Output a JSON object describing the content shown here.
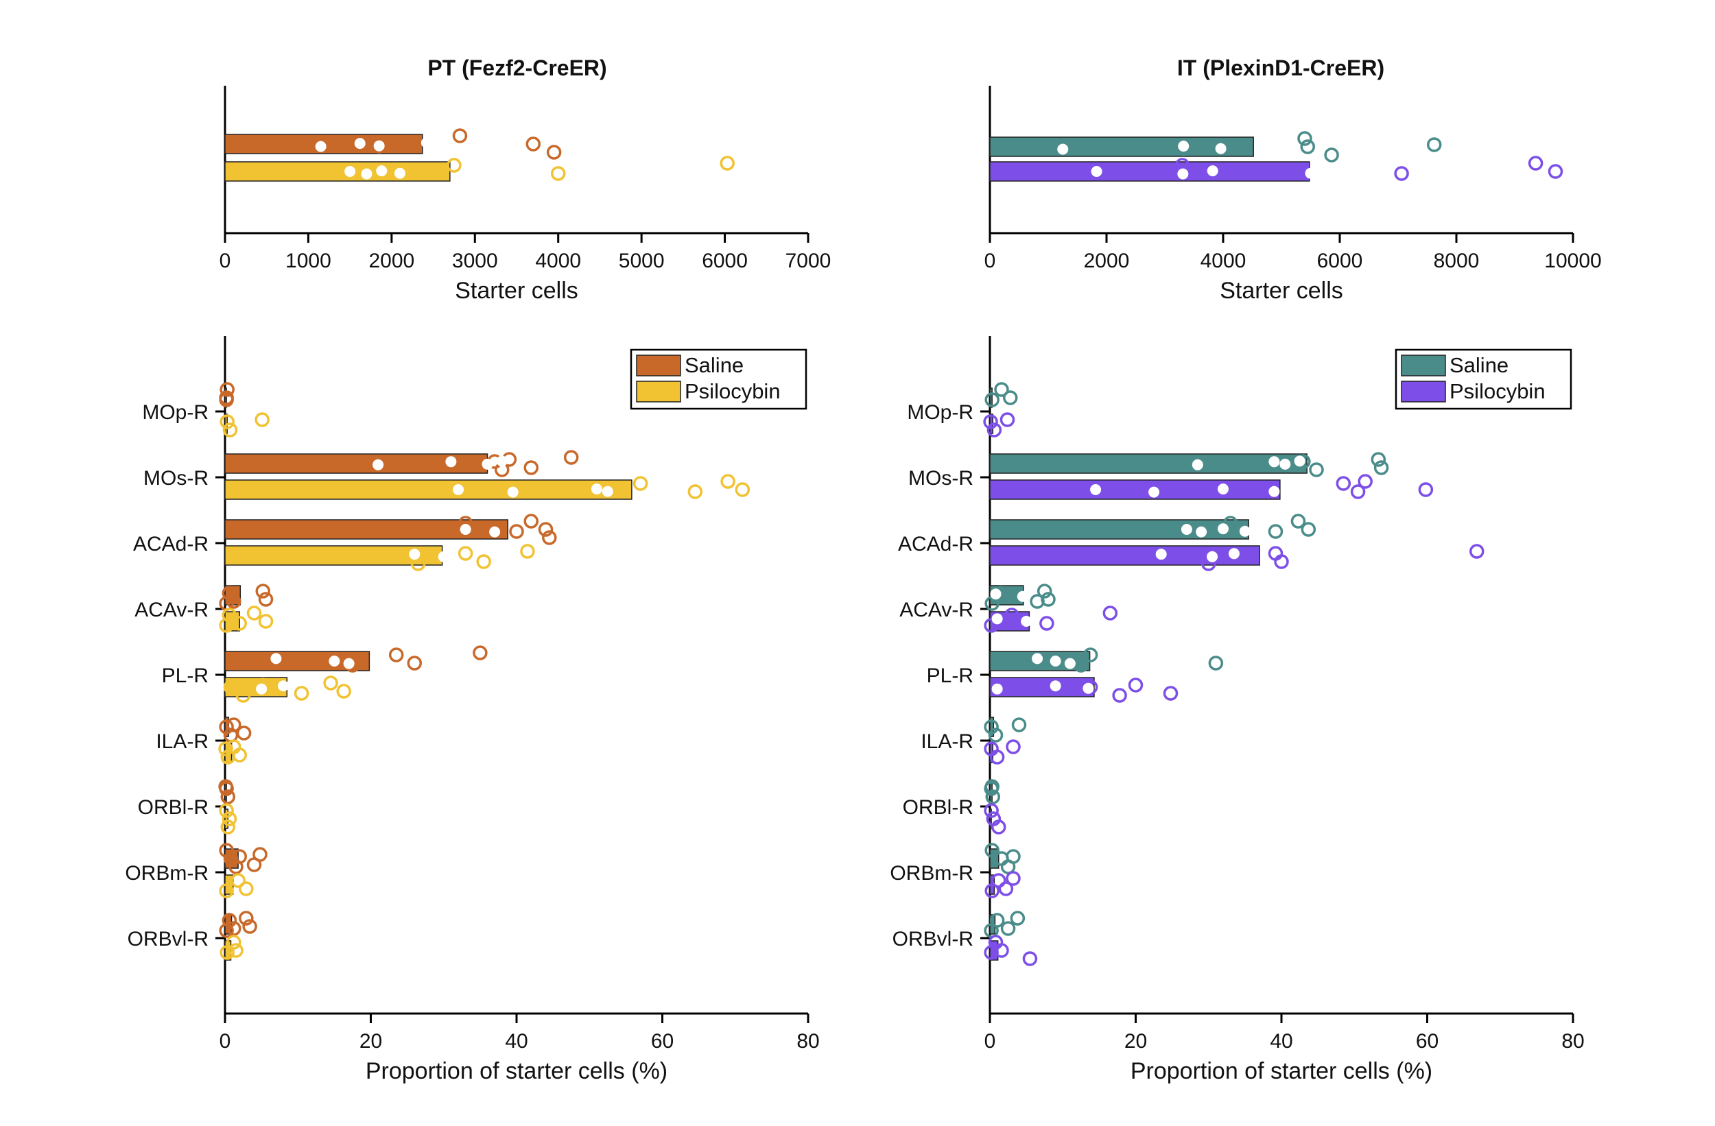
{
  "colors": {
    "pt_saline": "#c8692a",
    "pt_psilocybin": "#f1c232",
    "it_saline": "#4a8c8a",
    "it_psilocybin": "#7d4fe8"
  },
  "chart_data": [
    {
      "type": "bar",
      "panel": "pt-starter",
      "title": "PT (Fezf2-CreER)",
      "xlabel": "Starter cells",
      "ylabel": "",
      "xlim": [
        0,
        7000
      ],
      "xticks": [
        "0",
        "1000",
        "2000",
        "3000",
        "4000",
        "5000",
        "6000",
        "7000"
      ],
      "orientation": "horizontal",
      "series": [
        {
          "group": "Saline",
          "color_key": "pt_saline",
          "mean": 2370,
          "filled": [
            1150,
            1620,
            1850,
            2420
          ],
          "open": [
            1850,
            2820,
            3700,
            3950
          ]
        },
        {
          "group": "Psilocybin",
          "color_key": "pt_psilocybin",
          "mean": 2700,
          "filled": [
            1500,
            1700,
            1880,
            2100
          ],
          "open": [
            2750,
            4000,
            6030
          ]
        }
      ]
    },
    {
      "type": "bar",
      "panel": "it-starter",
      "title": "IT (PlexinD1-CreER)",
      "xlabel": "Starter cells",
      "ylabel": "",
      "xlim": [
        0,
        10000
      ],
      "xticks": [
        "0",
        "2000",
        "4000",
        "6000",
        "8000",
        "10000"
      ],
      "orientation": "horizontal",
      "series": [
        {
          "group": "Saline",
          "color_key": "it_saline",
          "mean": 4520,
          "filled": [
            1250,
            3320,
            3960
          ],
          "open": [
            3320,
            5400,
            5450,
            5860,
            7620
          ]
        },
        {
          "group": "Psilocybin",
          "color_key": "it_psilocybin",
          "mean": 5480,
          "filled": [
            1830,
            3310,
            3820,
            5500
          ],
          "open": [
            3300,
            7060,
            9360,
            9700
          ]
        }
      ]
    },
    {
      "type": "bar",
      "panel": "pt-proportion",
      "title": "",
      "xlabel": "Proportion of starter cells (%)",
      "ylabel": "",
      "xlim": [
        0,
        80
      ],
      "xticks": [
        "0",
        "20",
        "40",
        "60",
        "80"
      ],
      "orientation": "horizontal",
      "categories": [
        "MOp-R",
        "MOs-R",
        "ACAd-R",
        "ACAv-R",
        "PL-R",
        "ILA-R",
        "ORBl-R",
        "ORBm-R",
        "ORBvl-R"
      ],
      "legend": [
        "Saline",
        "Psilocybin"
      ],
      "legend_position": "top-right",
      "series": [
        {
          "name": "Saline",
          "color_key": "pt_saline",
          "values": [
            0.2,
            36,
            38.8,
            2.1,
            19.8,
            0.5,
            0.2,
            1.8,
            0.9
          ],
          "filled": [
            [],
            [
              21,
              31,
              36,
              38
            ],
            [
              33,
              37
            ],
            [],
            [
              7,
              15,
              17
            ],
            [],
            [],
            [],
            []
          ],
          "open": [
            [
              0.2,
              0.3,
              0.2
            ],
            [
              37,
              38,
              39,
              42,
              47.5
            ],
            [
              33,
              40,
              42,
              44,
              44.5
            ],
            [
              0.2,
              0.6,
              1.2,
              5.2,
              5.6
            ],
            [
              17.5,
              23.5,
              26,
              35
            ],
            [
              0.2,
              0.8,
              1.2,
              2.6
            ],
            [
              0.2,
              0.4,
              0.1
            ],
            [
              0.2,
              0.8,
              1.5,
              2,
              4,
              4.8
            ],
            [
              0.2,
              0.6,
              1.2,
              2.9,
              3.4
            ]
          ]
        },
        {
          "name": "Psilocybin",
          "color_key": "pt_psilocybin",
          "values": [
            0.3,
            55.8,
            29.8,
            2,
            8.5,
            0.9,
            0.4,
            1.1,
            0.8
          ],
          "filled": [
            [],
            [
              32,
              39.5,
              51,
              52.5
            ],
            [
              26,
              30
            ],
            [],
            [
              5,
              8
            ],
            [],
            [],
            [],
            []
          ],
          "open": [
            [
              0.3,
              0.7,
              5.1
            ],
            [
              57,
              64.5,
              69,
              71
            ],
            [
              26.5,
              33,
              35.5,
              41.5
            ],
            [
              0.2,
              0.6,
              2,
              4,
              5.6
            ],
            [
              0.8,
              2.5,
              5.2,
              10.5,
              14.5,
              16.3
            ],
            [
              0.1,
              0.4,
              1.2,
              2
            ],
            [
              0.2,
              0.6,
              0.4
            ],
            [
              0.2,
              1.8,
              2.9
            ],
            [
              0.3,
              1.2,
              1.5
            ]
          ]
        }
      ]
    },
    {
      "type": "bar",
      "panel": "it-proportion",
      "title": "",
      "xlabel": "Proportion of starter cells (%)",
      "ylabel": "",
      "xlim": [
        0,
        80
      ],
      "xticks": [
        "0",
        "20",
        "40",
        "60",
        "80"
      ],
      "orientation": "horizontal",
      "categories": [
        "MOp-R",
        "MOs-R",
        "ACAd-R",
        "ACAv-R",
        "PL-R",
        "ILA-R",
        "ORBl-R",
        "ORBm-R",
        "ORBvl-R"
      ],
      "legend": [
        "Saline",
        "Psilocybin"
      ],
      "legend_position": "top-right",
      "series": [
        {
          "name": "Saline",
          "color_key": "it_saline",
          "values": [
            0.3,
            43.5,
            35.5,
            4.6,
            13.7,
            0.5,
            0.3,
            1.2,
            0.7
          ],
          "filled": [
            [],
            [
              28.5,
              39,
              40.5,
              42.5
            ],
            [
              27,
              29,
              32,
              35
            ],
            [
              0.8,
              4.5
            ],
            [
              6.5,
              9,
              11
            ],
            [],
            [],
            [],
            []
          ],
          "open": [
            [
              0.3,
              1.6,
              2.8
            ],
            [
              43,
              44.8,
              53.3,
              53.7
            ],
            [
              33,
              39.2,
              42.3,
              43.7
            ],
            [
              0.3,
              1.5,
              6.5,
              7.5,
              8
            ],
            [
              12.5,
              13.8,
              31
            ],
            [
              0.2,
              0.8,
              4
            ],
            [
              0.2,
              0.4,
              0.3
            ],
            [
              0.3,
              1.6,
              2.5,
              3.2
            ],
            [
              0.2,
              1,
              2.5,
              3.8
            ]
          ]
        },
        {
          "name": "Psilocybin",
          "color_key": "it_psilocybin",
          "values": [
            0.4,
            39.8,
            37,
            5.4,
            14.3,
            0.4,
            0.2,
            0.6,
            1.1
          ],
          "filled": [
            [],
            [
              14.5,
              22.5,
              32,
              39
            ],
            [
              23.5,
              30.5,
              33.5
            ],
            [
              1,
              5
            ],
            [
              1,
              9,
              13.5
            ],
            [],
            [],
            [],
            []
          ],
          "open": [
            [
              0.1,
              0.6,
              2.4
            ],
            [
              48.5,
              50.5,
              51.5,
              59.8
            ],
            [
              30,
              39.2,
              40,
              66.8
            ],
            [
              0.2,
              3,
              7.8,
              16.5
            ],
            [
              13.8,
              17.8,
              20,
              24.8
            ],
            [
              0.2,
              1,
              3.2
            ],
            [
              0.2,
              0.5,
              1.2
            ],
            [
              0.3,
              1.2,
              2.2,
              3.2
            ],
            [
              0.2,
              0.8,
              1.6,
              5.5
            ]
          ]
        }
      ]
    }
  ]
}
